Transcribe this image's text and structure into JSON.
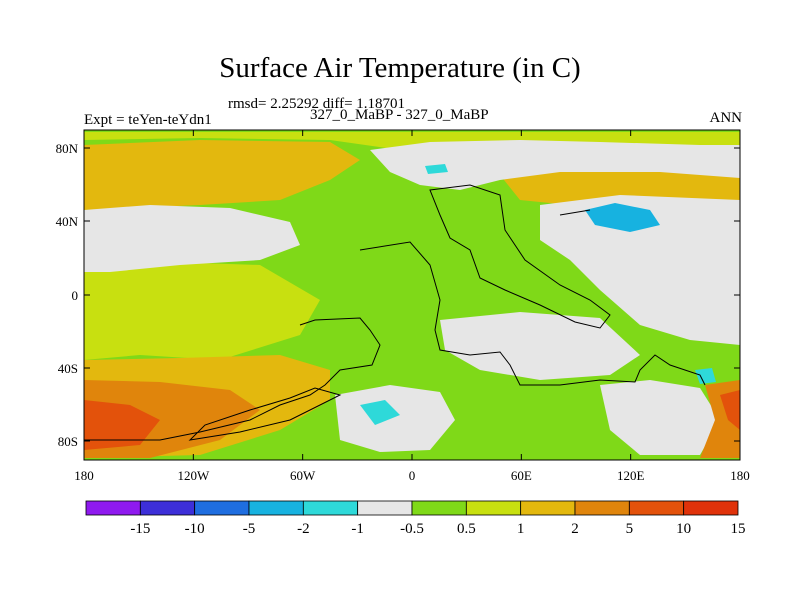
{
  "title": "Surface Air Temperature (in C)",
  "stats_line": "rmsd= 2.25292 diff= 1.18701",
  "case_line": "327_0_MaBP - 327_0_MaBP",
  "experiment": "Expt = teYen-teYdn1",
  "season": "ANN",
  "lat_ticks": [
    "80N",
    "40N",
    "0",
    "40S",
    "80S"
  ],
  "lon_ticks": [
    "180",
    "120W",
    "60W",
    "0",
    "60E",
    "120E",
    "180"
  ],
  "colorbar": {
    "colors": [
      "#8f1aef",
      "#3d2fd8",
      "#1f6ee0",
      "#17b2e0",
      "#2ed9d9",
      "#e6e6e6",
      "#7fd918",
      "#c8e010",
      "#e3b80e",
      "#e0850c",
      "#e3520b",
      "#e0320a"
    ],
    "labels": [
      "-15",
      "-10",
      "-5",
      "-2",
      "-1",
      "-0.5",
      "0.5",
      "1",
      "2",
      "5",
      "10",
      "15"
    ]
  },
  "palette": {
    "neutral": "#e6e6e6",
    "green": "#7fd918",
    "yellowgreen": "#c8e010",
    "orange": "#e3b80e",
    "darkorange": "#e0850c",
    "red": "#e3520b",
    "cyan": "#2ed9d9",
    "blue": "#17b2e0"
  }
}
